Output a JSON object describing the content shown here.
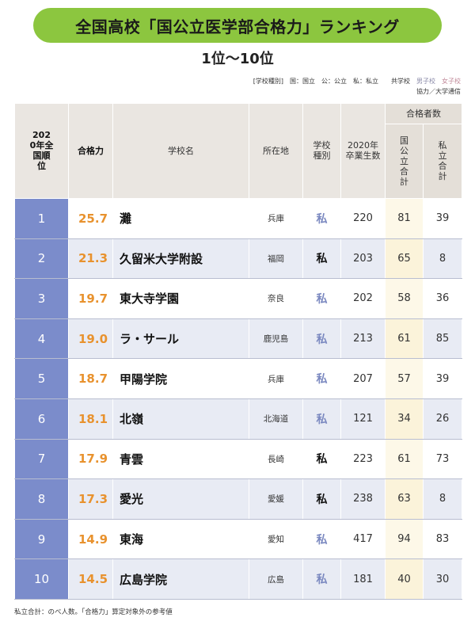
{
  "title": "全国高校「国公立医学部合格力」ランキング",
  "subtitle": "1位～10位",
  "legend": {
    "prefix": "[学校種別]　国：国立　公：公立　私：私立　　共学校",
    "boys": "男子校",
    "girls": "女子校"
  },
  "cooperation": "協力／大学通信",
  "headers": {
    "rank": "2020年全国順位",
    "score": "合格力",
    "school": "学校名",
    "location": "所在地",
    "type": "学校種別",
    "graduates": "2020年卒業生数",
    "passers": "合格者数",
    "public_total": "国公立合計",
    "private_total": "私立合計"
  },
  "rows": [
    {
      "rank": "1",
      "score": "25.7",
      "school": "灘",
      "location": "兵庫",
      "type": "私",
      "boys": true,
      "graduates": "220",
      "public": "81",
      "private": "39"
    },
    {
      "rank": "2",
      "score": "21.3",
      "school": "久留米大学附設",
      "location": "福岡",
      "type": "私",
      "boys": false,
      "graduates": "203",
      "public": "65",
      "private": "8"
    },
    {
      "rank": "3",
      "score": "19.7",
      "school": "東大寺学園",
      "location": "奈良",
      "type": "私",
      "boys": true,
      "graduates": "202",
      "public": "58",
      "private": "36"
    },
    {
      "rank": "4",
      "score": "19.0",
      "school": "ラ・サール",
      "location": "鹿児島",
      "type": "私",
      "boys": true,
      "graduates": "213",
      "public": "61",
      "private": "85"
    },
    {
      "rank": "5",
      "score": "18.7",
      "school": "甲陽学院",
      "location": "兵庫",
      "type": "私",
      "boys": true,
      "graduates": "207",
      "public": "57",
      "private": "39"
    },
    {
      "rank": "6",
      "score": "18.1",
      "school": "北嶺",
      "location": "北海道",
      "type": "私",
      "boys": true,
      "graduates": "121",
      "public": "34",
      "private": "26"
    },
    {
      "rank": "7",
      "score": "17.9",
      "school": "青雲",
      "location": "長崎",
      "type": "私",
      "boys": false,
      "graduates": "223",
      "public": "61",
      "private": "73"
    },
    {
      "rank": "8",
      "score": "17.3",
      "school": "愛光",
      "location": "愛媛",
      "type": "私",
      "boys": false,
      "graduates": "238",
      "public": "63",
      "private": "8"
    },
    {
      "rank": "9",
      "score": "14.9",
      "school": "東海",
      "location": "愛知",
      "type": "私",
      "boys": true,
      "graduates": "417",
      "public": "94",
      "private": "83"
    },
    {
      "rank": "10",
      "score": "14.5",
      "school": "広島学院",
      "location": "広島",
      "type": "私",
      "boys": true,
      "graduates": "181",
      "public": "40",
      "private": "30"
    }
  ],
  "footnote": "私立合計：のべ人数。「合格力」算定対象外の参考値",
  "colors": {
    "title_bg": "#8cc63f",
    "rank_bg": "#7b8ccb",
    "score_text": "#e8922e",
    "boys_text": "#7a88c0"
  }
}
